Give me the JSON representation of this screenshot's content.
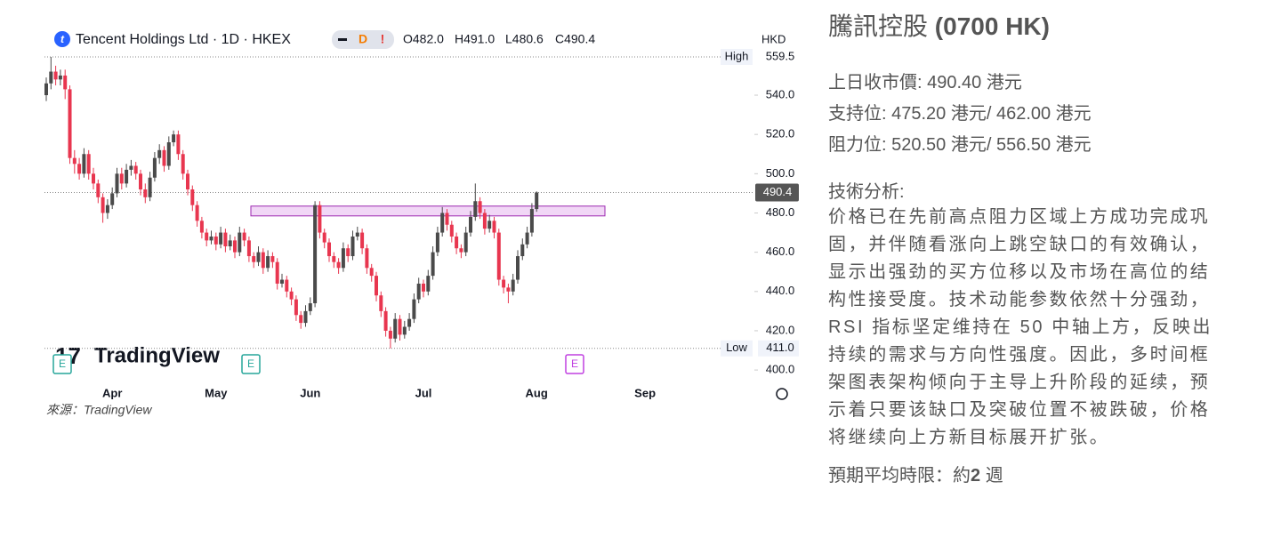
{
  "chart_data": {
    "type": "candlestick",
    "title": "Tencent Holdings Ltd · 1D · HKEX",
    "badges": [
      "D",
      "!"
    ],
    "legend_ohlc": [
      "O482.0",
      "H491.0",
      "L480.6",
      "C490.4"
    ],
    "currency": "HKD",
    "watermark": "TradingView",
    "source": "來源：TradingView",
    "earnings_markers": [
      "E",
      "E",
      "E"
    ],
    "up_color": "#4a4a4a",
    "down_color": "#e8364f",
    "categories": [
      null,
      null,
      null,
      null,
      null,
      null,
      null,
      null,
      null,
      null,
      null,
      null,
      null,
      null,
      "Apr",
      null,
      null,
      null,
      null,
      null,
      null,
      null,
      null,
      null,
      null,
      null,
      null,
      null,
      null,
      null,
      null,
      null,
      null,
      null,
      null,
      null,
      "May",
      null,
      null,
      null,
      null,
      null,
      null,
      null,
      null,
      null,
      null,
      null,
      null,
      null,
      null,
      null,
      null,
      null,
      null,
      null,
      "Jun",
      null,
      null,
      null,
      null,
      null,
      null,
      null,
      null,
      null,
      null,
      null,
      null,
      null,
      null,
      null,
      null,
      null,
      null,
      null,
      null,
      null,
      null,
      null,
      "Jul",
      null,
      null,
      null,
      null,
      null,
      null,
      null,
      null,
      null,
      null,
      null,
      null,
      null,
      null,
      null,
      null,
      null,
      null,
      null,
      null,
      null,
      null,
      null,
      "Aug",
      null,
      null,
      null,
      null,
      null,
      null,
      null,
      null,
      null,
      null,
      null,
      null,
      null,
      null,
      null,
      null,
      null,
      null,
      null,
      null,
      null,
      null,
      "Sep"
    ],
    "open": [
      540,
      546,
      552,
      548,
      550,
      543,
      508,
      505,
      500,
      510,
      500,
      495,
      488,
      480,
      484,
      490,
      500,
      495,
      502,
      504,
      500,
      492,
      488,
      498,
      508,
      512,
      504,
      516,
      520,
      510,
      500,
      492,
      484,
      476,
      470,
      466,
      468,
      464,
      470,
      463,
      466,
      460,
      470,
      466,
      458,
      455,
      460,
      452,
      458,
      455,
      444,
      446,
      440,
      436,
      428,
      424,
      430,
      434,
      484,
      470,
      465,
      458,
      455,
      452,
      462,
      458,
      468,
      470,
      462,
      452,
      448,
      438,
      430,
      420,
      416,
      426,
      418,
      422,
      426,
      436,
      444,
      440,
      448,
      460,
      470,
      480,
      474,
      468,
      462,
      460,
      470,
      478,
      486,
      480,
      472,
      476,
      470,
      446,
      442,
      440,
      446,
      458,
      464,
      470,
      482,
      null,
      null,
      null,
      null,
      null,
      null,
      null,
      null,
      null,
      null,
      null,
      null,
      null,
      null,
      null,
      null,
      null,
      null,
      null,
      null,
      null,
      null,
      null
    ],
    "high": [
      549,
      559.5,
      555,
      553,
      553,
      545,
      512,
      508,
      513,
      512,
      503,
      497,
      490,
      487,
      493,
      503,
      503,
      505,
      507,
      506,
      502,
      495,
      501,
      511,
      515,
      514,
      519,
      522,
      522,
      512,
      502,
      494,
      486,
      478,
      472,
      471,
      470,
      473,
      472,
      469,
      468,
      473,
      472,
      468,
      460,
      463,
      462,
      461,
      460,
      457,
      449,
      448,
      442,
      438,
      430,
      433,
      437,
      486,
      486,
      472,
      467,
      460,
      457,
      465,
      464,
      471,
      473,
      472,
      464,
      454,
      450,
      440,
      432,
      422,
      429,
      428,
      425,
      429,
      439,
      447,
      446,
      451,
      463,
      473,
      483,
      482,
      476,
      470,
      464,
      473,
      481,
      495,
      488,
      482,
      479,
      478,
      472,
      448,
      444,
      449,
      461,
      467,
      473,
      485,
      491,
      null,
      null,
      null,
      null,
      null,
      null,
      null,
      null,
      null,
      null,
      null,
      null,
      null,
      null,
      null,
      null,
      null,
      null,
      null,
      null,
      null,
      null,
      null
    ],
    "low": [
      537,
      543,
      545,
      545,
      538,
      505,
      500,
      497,
      498,
      497,
      492,
      485,
      475,
      477,
      482,
      488,
      492,
      493,
      499,
      497,
      489,
      485,
      486,
      496,
      505,
      501,
      502,
      514,
      507,
      497,
      489,
      481,
      473,
      467,
      463,
      464,
      461,
      462,
      460,
      461,
      457,
      458,
      463,
      455,
      452,
      453,
      449,
      450,
      452,
      441,
      442,
      437,
      433,
      425,
      421,
      422,
      428,
      432,
      467,
      462,
      455,
      452,
      449,
      450,
      455,
      456,
      466,
      459,
      449,
      445,
      435,
      427,
      417,
      411,
      414,
      415,
      416,
      420,
      424,
      434,
      437,
      438,
      446,
      458,
      468,
      471,
      465,
      459,
      457,
      458,
      468,
      476,
      477,
      469,
      470,
      467,
      443,
      439,
      434,
      438,
      444,
      456,
      462,
      468,
      480.6,
      null,
      null,
      null,
      null,
      null,
      null,
      null,
      null,
      null,
      null,
      null,
      null,
      null,
      null,
      null,
      null,
      null,
      null,
      null,
      null,
      null,
      null,
      null
    ],
    "close": [
      546,
      552,
      548,
      550,
      543,
      508,
      505,
      500,
      510,
      500,
      495,
      488,
      480,
      484,
      490,
      500,
      495,
      502,
      504,
      500,
      492,
      488,
      498,
      508,
      512,
      504,
      516,
      520,
      510,
      500,
      492,
      484,
      476,
      470,
      466,
      468,
      464,
      470,
      463,
      466,
      460,
      470,
      466,
      458,
      455,
      460,
      452,
      458,
      455,
      444,
      446,
      440,
      436,
      428,
      424,
      430,
      434,
      484,
      470,
      465,
      458,
      455,
      452,
      462,
      458,
      468,
      470,
      462,
      452,
      448,
      438,
      430,
      420,
      416,
      426,
      418,
      422,
      426,
      436,
      444,
      440,
      448,
      460,
      470,
      480,
      474,
      468,
      462,
      460,
      470,
      478,
      486,
      480,
      472,
      476,
      470,
      446,
      442,
      440,
      446,
      458,
      464,
      470,
      482,
      490.4,
      null,
      null,
      null,
      null,
      null,
      null,
      null,
      null,
      null,
      null,
      null,
      null,
      null,
      null,
      null,
      null,
      null,
      null,
      null,
      null,
      null,
      null,
      null
    ],
    "ylim": [
      393.7,
      561.3
    ],
    "yticks": [
      {
        "value": 400,
        "label": "400.0"
      },
      {
        "value": 420,
        "label": "420.0"
      },
      {
        "value": 440,
        "label": "440.0"
      },
      {
        "value": 460,
        "label": "460.0"
      },
      {
        "value": 480,
        "label": "480.0"
      },
      {
        "value": 500,
        "label": "500.0"
      },
      {
        "value": 520,
        "label": "520.0"
      },
      {
        "value": 540,
        "label": "540.0"
      }
    ],
    "high_marker": {
      "name": "High",
      "value": 559.5,
      "label": "559.5"
    },
    "low_marker": {
      "name": "Low",
      "value": 411,
      "label": "411.0"
    },
    "last_price": {
      "value": 490.4,
      "label": "490.4"
    },
    "zone": [
      478.5,
      483.5
    ]
  },
  "side": {
    "title_main": "騰訊控股",
    "title_code": "(0700 HK)",
    "lines": [
      "上日收市價: 490.40 港元",
      "支持位: 475.20 港元/ 462.00 港元",
      "阻力位: 520.50 港元/ 556.50 港元"
    ],
    "analysis_heading": "技術分析:",
    "analysis_body": "价格已在先前高点阻力区域上方成功完成巩固，并伴随看涨向上跳空缺口的有效确认，显示出强劲的买方位移以及市场在高位的结构性接受度。技术动能参数依然十分强劲，RSI 指标坚定维持在 50 中轴上方，反映出持续的需求与方向性强度。因此，多时间框架图表架构倾向于主导上升阶段的延续，预示着只要该缺口及突破位置不被跌破，价格将继续向上方新目标展开扩张。",
    "expected_label": "預期平均時限：約",
    "expected_value": "2",
    "expected_unit": "週"
  }
}
